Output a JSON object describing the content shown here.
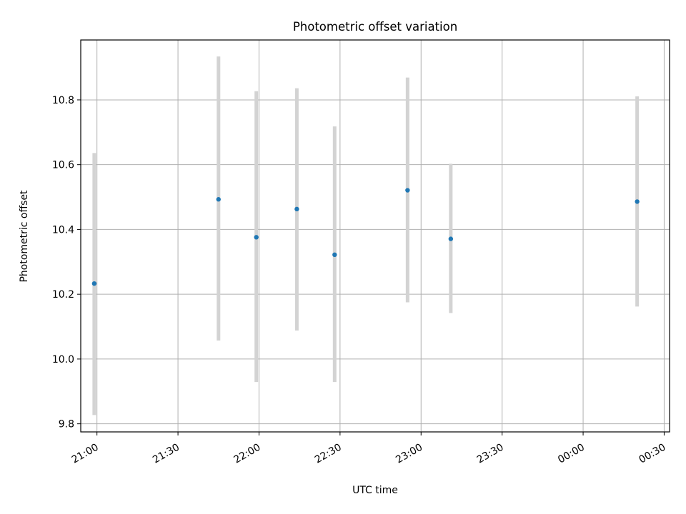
{
  "chart_data": {
    "type": "scatter",
    "title": "Photometric offset variation",
    "xlabel": "UTC time",
    "ylabel": "Photometric offset",
    "xlim": [
      "20:54",
      "00:32"
    ],
    "ylim": [
      9.775,
      10.985
    ],
    "x_ticks": [
      "21:00",
      "21:30",
      "22:00",
      "22:30",
      "23:00",
      "23:30",
      "00:00",
      "00:30"
    ],
    "y_ticks": [
      "9.8",
      "10.0",
      "10.2",
      "10.4",
      "10.6",
      "10.8"
    ],
    "grid": true,
    "colors": {
      "point": "#1f77b4",
      "errorbar": "#d3d3d3",
      "grid": "#b0b0b0"
    },
    "series": [
      {
        "points": [
          {
            "x": "20:59",
            "y": 10.233,
            "ylow": 9.827,
            "yhigh": 10.636
          },
          {
            "x": "21:45",
            "y": 10.493,
            "ylow": 10.057,
            "yhigh": 10.934
          },
          {
            "x": "21:59",
            "y": 10.376,
            "ylow": 9.929,
            "yhigh": 10.827
          },
          {
            "x": "22:14",
            "y": 10.463,
            "ylow": 10.088,
            "yhigh": 10.836
          },
          {
            "x": "22:28",
            "y": 10.322,
            "ylow": 9.929,
            "yhigh": 10.718
          },
          {
            "x": "22:55",
            "y": 10.521,
            "ylow": 10.175,
            "yhigh": 10.869
          },
          {
            "x": "23:11",
            "y": 10.371,
            "ylow": 10.142,
            "yhigh": 10.603
          },
          {
            "x": "00:20",
            "y": 10.486,
            "ylow": 10.162,
            "yhigh": 10.811
          }
        ]
      }
    ]
  }
}
